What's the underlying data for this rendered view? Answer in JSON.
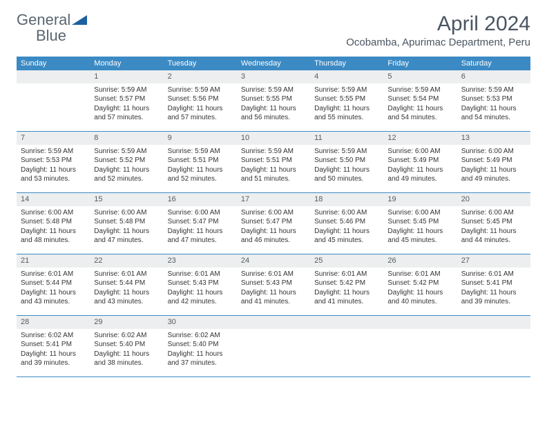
{
  "logo": {
    "text1": "General",
    "text2": "Blue"
  },
  "colors": {
    "header_bg": "#3b8ac4",
    "header_text": "#ffffff",
    "daynum_bg": "#eceeef",
    "daynum_text": "#555b60",
    "body_text": "#333333",
    "title_text": "#4a5560",
    "row_border": "#3b8ac4",
    "logo_triangle": "#1e5fa0",
    "page_bg": "#ffffff"
  },
  "typography": {
    "month_title_fontsize": 30,
    "location_fontsize": 15,
    "weekday_fontsize": 11,
    "daynum_fontsize": 11,
    "body_fontsize": 10
  },
  "month_title": "April 2024",
  "location": "Ocobamba, Apurimac Department, Peru",
  "weekdays": [
    "Sunday",
    "Monday",
    "Tuesday",
    "Wednesday",
    "Thursday",
    "Friday",
    "Saturday"
  ],
  "weeks": [
    [
      {
        "n": "",
        "lines": []
      },
      {
        "n": "1",
        "lines": [
          "Sunrise: 5:59 AM",
          "Sunset: 5:57 PM",
          "Daylight: 11 hours and 57 minutes."
        ]
      },
      {
        "n": "2",
        "lines": [
          "Sunrise: 5:59 AM",
          "Sunset: 5:56 PM",
          "Daylight: 11 hours and 57 minutes."
        ]
      },
      {
        "n": "3",
        "lines": [
          "Sunrise: 5:59 AM",
          "Sunset: 5:55 PM",
          "Daylight: 11 hours and 56 minutes."
        ]
      },
      {
        "n": "4",
        "lines": [
          "Sunrise: 5:59 AM",
          "Sunset: 5:55 PM",
          "Daylight: 11 hours and 55 minutes."
        ]
      },
      {
        "n": "5",
        "lines": [
          "Sunrise: 5:59 AM",
          "Sunset: 5:54 PM",
          "Daylight: 11 hours and 54 minutes."
        ]
      },
      {
        "n": "6",
        "lines": [
          "Sunrise: 5:59 AM",
          "Sunset: 5:53 PM",
          "Daylight: 11 hours and 54 minutes."
        ]
      }
    ],
    [
      {
        "n": "7",
        "lines": [
          "Sunrise: 5:59 AM",
          "Sunset: 5:53 PM",
          "Daylight: 11 hours and 53 minutes."
        ]
      },
      {
        "n": "8",
        "lines": [
          "Sunrise: 5:59 AM",
          "Sunset: 5:52 PM",
          "Daylight: 11 hours and 52 minutes."
        ]
      },
      {
        "n": "9",
        "lines": [
          "Sunrise: 5:59 AM",
          "Sunset: 5:51 PM",
          "Daylight: 11 hours and 52 minutes."
        ]
      },
      {
        "n": "10",
        "lines": [
          "Sunrise: 5:59 AM",
          "Sunset: 5:51 PM",
          "Daylight: 11 hours and 51 minutes."
        ]
      },
      {
        "n": "11",
        "lines": [
          "Sunrise: 5:59 AM",
          "Sunset: 5:50 PM",
          "Daylight: 11 hours and 50 minutes."
        ]
      },
      {
        "n": "12",
        "lines": [
          "Sunrise: 6:00 AM",
          "Sunset: 5:49 PM",
          "Daylight: 11 hours and 49 minutes."
        ]
      },
      {
        "n": "13",
        "lines": [
          "Sunrise: 6:00 AM",
          "Sunset: 5:49 PM",
          "Daylight: 11 hours and 49 minutes."
        ]
      }
    ],
    [
      {
        "n": "14",
        "lines": [
          "Sunrise: 6:00 AM",
          "Sunset: 5:48 PM",
          "Daylight: 11 hours and 48 minutes."
        ]
      },
      {
        "n": "15",
        "lines": [
          "Sunrise: 6:00 AM",
          "Sunset: 5:48 PM",
          "Daylight: 11 hours and 47 minutes."
        ]
      },
      {
        "n": "16",
        "lines": [
          "Sunrise: 6:00 AM",
          "Sunset: 5:47 PM",
          "Daylight: 11 hours and 47 minutes."
        ]
      },
      {
        "n": "17",
        "lines": [
          "Sunrise: 6:00 AM",
          "Sunset: 5:47 PM",
          "Daylight: 11 hours and 46 minutes."
        ]
      },
      {
        "n": "18",
        "lines": [
          "Sunrise: 6:00 AM",
          "Sunset: 5:46 PM",
          "Daylight: 11 hours and 45 minutes."
        ]
      },
      {
        "n": "19",
        "lines": [
          "Sunrise: 6:00 AM",
          "Sunset: 5:45 PM",
          "Daylight: 11 hours and 45 minutes."
        ]
      },
      {
        "n": "20",
        "lines": [
          "Sunrise: 6:00 AM",
          "Sunset: 5:45 PM",
          "Daylight: 11 hours and 44 minutes."
        ]
      }
    ],
    [
      {
        "n": "21",
        "lines": [
          "Sunrise: 6:01 AM",
          "Sunset: 5:44 PM",
          "Daylight: 11 hours and 43 minutes."
        ]
      },
      {
        "n": "22",
        "lines": [
          "Sunrise: 6:01 AM",
          "Sunset: 5:44 PM",
          "Daylight: 11 hours and 43 minutes."
        ]
      },
      {
        "n": "23",
        "lines": [
          "Sunrise: 6:01 AM",
          "Sunset: 5:43 PM",
          "Daylight: 11 hours and 42 minutes."
        ]
      },
      {
        "n": "24",
        "lines": [
          "Sunrise: 6:01 AM",
          "Sunset: 5:43 PM",
          "Daylight: 11 hours and 41 minutes."
        ]
      },
      {
        "n": "25",
        "lines": [
          "Sunrise: 6:01 AM",
          "Sunset: 5:42 PM",
          "Daylight: 11 hours and 41 minutes."
        ]
      },
      {
        "n": "26",
        "lines": [
          "Sunrise: 6:01 AM",
          "Sunset: 5:42 PM",
          "Daylight: 11 hours and 40 minutes."
        ]
      },
      {
        "n": "27",
        "lines": [
          "Sunrise: 6:01 AM",
          "Sunset: 5:41 PM",
          "Daylight: 11 hours and 39 minutes."
        ]
      }
    ],
    [
      {
        "n": "28",
        "lines": [
          "Sunrise: 6:02 AM",
          "Sunset: 5:41 PM",
          "Daylight: 11 hours and 39 minutes."
        ]
      },
      {
        "n": "29",
        "lines": [
          "Sunrise: 6:02 AM",
          "Sunset: 5:40 PM",
          "Daylight: 11 hours and 38 minutes."
        ]
      },
      {
        "n": "30",
        "lines": [
          "Sunrise: 6:02 AM",
          "Sunset: 5:40 PM",
          "Daylight: 11 hours and 37 minutes."
        ]
      },
      {
        "n": "",
        "lines": []
      },
      {
        "n": "",
        "lines": []
      },
      {
        "n": "",
        "lines": []
      },
      {
        "n": "",
        "lines": []
      }
    ]
  ]
}
